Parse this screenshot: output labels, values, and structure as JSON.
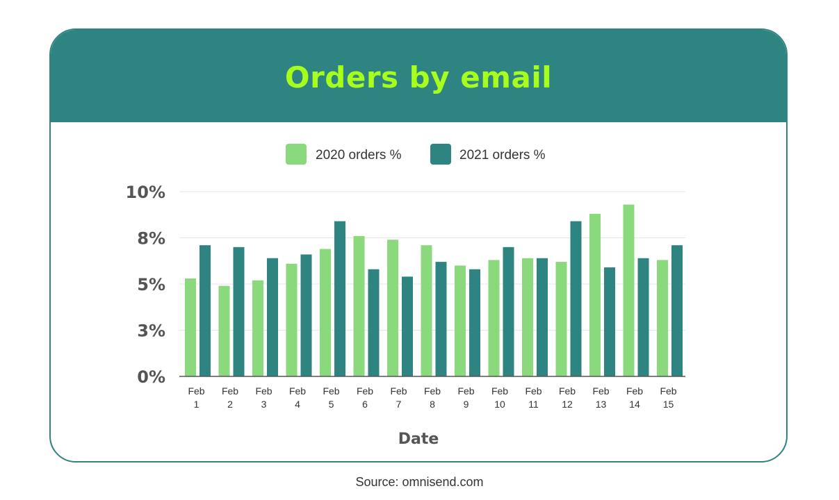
{
  "chart_data": {
    "type": "bar",
    "title": "Orders by email",
    "xlabel": "Date",
    "ylabel": "",
    "ylim": [
      0,
      10
    ],
    "y_ticks": [
      0,
      2.5,
      5,
      7.5,
      10
    ],
    "y_tick_labels": [
      "0%",
      "3%",
      "5%",
      "8%",
      "10%"
    ],
    "grid": true,
    "legend_position": "top-center",
    "categories": [
      "Feb 1",
      "Feb 2",
      "Feb 3",
      "Feb 4",
      "Feb 5",
      "Feb 6",
      "Feb 7",
      "Feb 8",
      "Feb 9",
      "Feb 10",
      "Feb 11",
      "Feb 12",
      "Feb 13",
      "Feb 14",
      "Feb 15"
    ],
    "category_lines": [
      [
        "Feb",
        "1"
      ],
      [
        "Feb",
        "2"
      ],
      [
        "Feb",
        "3"
      ],
      [
        "Feb",
        "4"
      ],
      [
        "Feb",
        "5"
      ],
      [
        "Feb",
        "6"
      ],
      [
        "Feb",
        "7"
      ],
      [
        "Feb",
        "8"
      ],
      [
        "Feb",
        "9"
      ],
      [
        "Feb",
        "10"
      ],
      [
        "Feb",
        "11"
      ],
      [
        "Feb",
        "12"
      ],
      [
        "Feb",
        "13"
      ],
      [
        "Feb",
        "14"
      ],
      [
        "Feb",
        "15"
      ]
    ],
    "series": [
      {
        "name": "2020 orders %",
        "color": "#8ad97c",
        "values": [
          5.3,
          4.9,
          5.2,
          6.1,
          6.9,
          7.6,
          7.4,
          7.1,
          6.0,
          6.3,
          6.4,
          6.2,
          8.8,
          9.3,
          6.3
        ]
      },
      {
        "name": "2021 orders %",
        "color": "#2e8480",
        "values": [
          7.1,
          7.0,
          6.4,
          6.6,
          8.4,
          5.8,
          5.4,
          6.2,
          5.8,
          7.0,
          6.4,
          8.4,
          5.9,
          6.4,
          7.1
        ]
      }
    ]
  },
  "colors": {
    "header_bg": "#2e8480",
    "title_color": "#a6ff1c",
    "grid": "#e6e6e6",
    "axis": "#555555"
  },
  "footer": {
    "source": "Source: omnisend.com"
  }
}
